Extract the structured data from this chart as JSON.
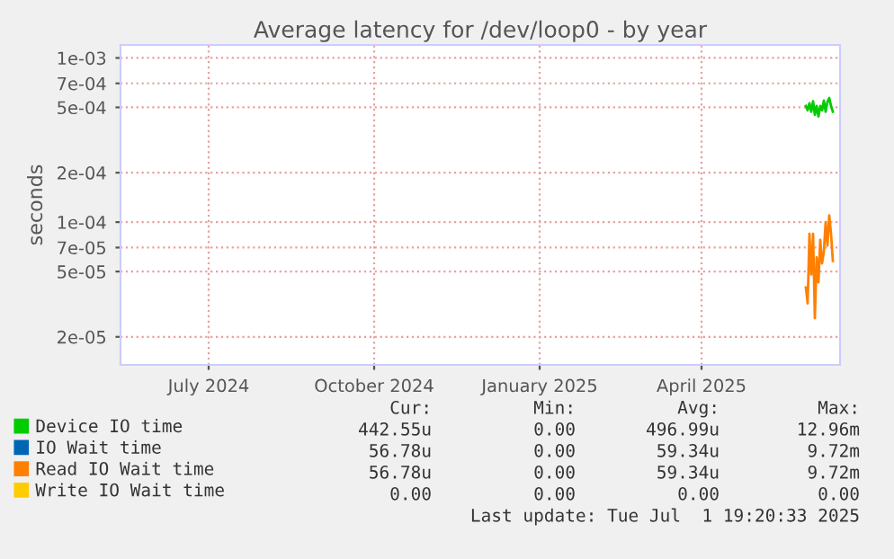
{
  "chart_data": {
    "type": "line",
    "title": "Average latency for /dev/loop0 - by year",
    "ylabel": "seconds",
    "log": "y",
    "x": [
      "2025-05-29",
      "2025-05-30",
      "2025-05-31",
      "2025-06-01",
      "2025-06-02",
      "2025-06-03",
      "2025-06-04",
      "2025-06-05",
      "2025-06-06",
      "2025-06-07",
      "2025-06-08",
      "2025-06-09",
      "2025-06-10",
      "2025-06-11",
      "2025-06-12",
      "2025-06-13"
    ],
    "series": [
      {
        "name": "Device IO time",
        "color": "#00cc00",
        "values": [
          0.00051,
          0.00048,
          0.00053,
          0.00047,
          0.000545,
          0.00045,
          0.00051,
          0.00044,
          0.00051,
          0.00048,
          0.00055,
          0.00047,
          0.00054,
          0.00057,
          0.00051,
          0.00047
        ]
      },
      {
        "name": "IO Wait time",
        "color": "#0066b3",
        "values": [
          null,
          null,
          null,
          null,
          null,
          null,
          null,
          null,
          null,
          null,
          null,
          null,
          null,
          null,
          null,
          null
        ]
      },
      {
        "name": "Read IO Wait time",
        "color": "#ff8000",
        "values": [
          4e-05,
          3.2e-05,
          8.5e-05,
          4.8e-05,
          8.5e-05,
          2.6e-05,
          6.1e-05,
          4.3e-05,
          7.8e-05,
          5.6e-05,
          6.6e-05,
          0.0001,
          7.2e-05,
          0.00011,
          8.5e-05,
          5.8e-05
        ]
      },
      {
        "name": "Write IO Wait time",
        "color": "#ffcc00",
        "values": [
          null,
          null,
          null,
          null,
          null,
          null,
          null,
          null,
          null,
          null,
          null,
          null,
          null,
          null,
          null,
          null
        ]
      }
    ],
    "xlim": [
      "2024-05-13",
      "2025-06-17"
    ],
    "xticks": [
      {
        "value": "2024-07-01",
        "label": "July 2024"
      },
      {
        "value": "2024-10-01",
        "label": "October 2024"
      },
      {
        "value": "2025-01-01",
        "label": "January 2025"
      },
      {
        "value": "2025-04-01",
        "label": "April 2025"
      }
    ],
    "ylim": [
      1.35e-05,
      0.0012
    ],
    "yticks": [
      {
        "value": 0.001,
        "label": "1e-03"
      },
      {
        "value": 0.0007,
        "label": "7e-04"
      },
      {
        "value": 0.0005,
        "label": "5e-04"
      },
      {
        "value": 0.0002,
        "label": "2e-04"
      },
      {
        "value": 0.0001,
        "label": "1e-04"
      },
      {
        "value": 7e-05,
        "label": "7e-05"
      },
      {
        "value": 5e-05,
        "label": "5e-05"
      },
      {
        "value": 2e-05,
        "label": "2e-05"
      }
    ],
    "grid": true,
    "legend": "bottom",
    "annotations": [
      "Cur:",
      "Min:",
      "Avg:",
      "Max:",
      "442.55u",
      "0.00",
      "496.99u",
      "12.96m",
      "56.78u",
      "0.00",
      "59.34u",
      "9.72m",
      "56.78u",
      "0.00",
      "59.34u",
      "9.72m",
      "0.00",
      "0.00",
      "0.00",
      "0.00",
      "Last update: Tue Jul  1 19:20:33 2025"
    ]
  }
}
